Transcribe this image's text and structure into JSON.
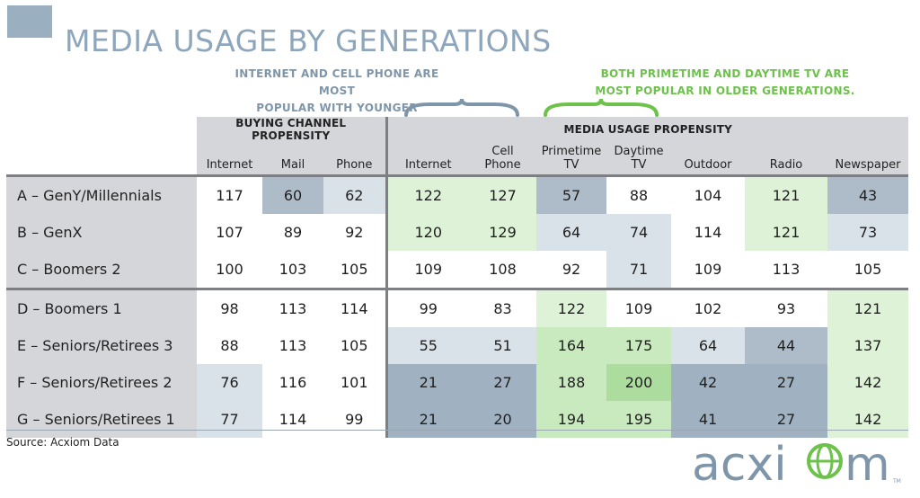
{
  "title": "MEDIA USAGE BY GENERATIONS",
  "annotations": {
    "left": "INTERNET AND CELL PHONE ARE MOST\nPOPULAR WITH YOUNGER GENERATIONS.",
    "right": "BOTH PRIMETIME AND DAYTIME TV ARE\nMOST POPULAR IN OLDER GENERATIONS."
  },
  "colors": {
    "title": "#8ea6bb",
    "annotation_left": "#7f96aa",
    "annotation_right": "#6cc24a",
    "white": "#ffffff",
    "light_blue": "#d9e1e9",
    "mid_blue": "#aebcc9",
    "dark_blue": "#a0b2c2",
    "light_green": "#ddf2d6",
    "mid_green": "#c8eabe",
    "dark_green": "#addc9f"
  },
  "chart_data": {
    "type": "table",
    "column_groups": [
      {
        "label": "BUYING CHANNEL PROPENSITY",
        "span": 3
      },
      {
        "label": "MEDIA USAGE PROPENSITY",
        "span": 7
      }
    ],
    "columns": [
      "Internet",
      "Mail",
      "Phone",
      "Internet",
      "Cell\nPhone",
      "Primetime\nTV",
      "Daytime\nTV",
      "Outdoor",
      "Radio",
      "Newspaper"
    ],
    "rows": [
      {
        "label": "A – GenY/Millennials",
        "values": [
          117,
          60,
          62,
          122,
          127,
          57,
          88,
          104,
          121,
          43
        ],
        "shades": [
          "w",
          "mb",
          "lb",
          "lg",
          "lg",
          "mb",
          "w",
          "w",
          "lg",
          "mb"
        ]
      },
      {
        "label": "B – GenX",
        "values": [
          107,
          89,
          92,
          120,
          129,
          64,
          74,
          114,
          121,
          73
        ],
        "shades": [
          "w",
          "w",
          "w",
          "lg",
          "lg",
          "lb",
          "lb",
          "w",
          "lg",
          "lb"
        ]
      },
      {
        "label": "C – Boomers 2",
        "values": [
          100,
          103,
          105,
          109,
          108,
          92,
          71,
          109,
          113,
          105
        ],
        "shades": [
          "w",
          "w",
          "w",
          "w",
          "w",
          "w",
          "lb",
          "w",
          "w",
          "w"
        ]
      },
      {
        "label": "D – Boomers 1",
        "values": [
          98,
          113,
          114,
          99,
          83,
          122,
          109,
          102,
          93,
          121
        ],
        "shades": [
          "w",
          "w",
          "w",
          "w",
          "w",
          "lg",
          "w",
          "w",
          "w",
          "lg"
        ]
      },
      {
        "label": "E – Seniors/Retirees 3",
        "values": [
          88,
          113,
          105,
          55,
          51,
          164,
          175,
          64,
          44,
          137
        ],
        "shades": [
          "w",
          "w",
          "w",
          "lb",
          "lb",
          "mg",
          "mg",
          "lb",
          "mb",
          "lg"
        ]
      },
      {
        "label": "F – Seniors/Retirees 2",
        "values": [
          76,
          116,
          101,
          21,
          27,
          188,
          200,
          42,
          27,
          142
        ],
        "shades": [
          "lb",
          "w",
          "w",
          "db",
          "db",
          "mg",
          "dg",
          "db",
          "db",
          "lg"
        ]
      },
      {
        "label": "G – Seniors/Retirees 1",
        "values": [
          77,
          114,
          99,
          21,
          20,
          194,
          195,
          41,
          27,
          142
        ],
        "shades": [
          "lb",
          "w",
          "w",
          "db",
          "db",
          "mg",
          "mg",
          "db",
          "db",
          "lg"
        ]
      }
    ]
  },
  "source": "Source: Acxiom Data",
  "logo": {
    "text": "acxiom",
    "tm": "TM"
  }
}
